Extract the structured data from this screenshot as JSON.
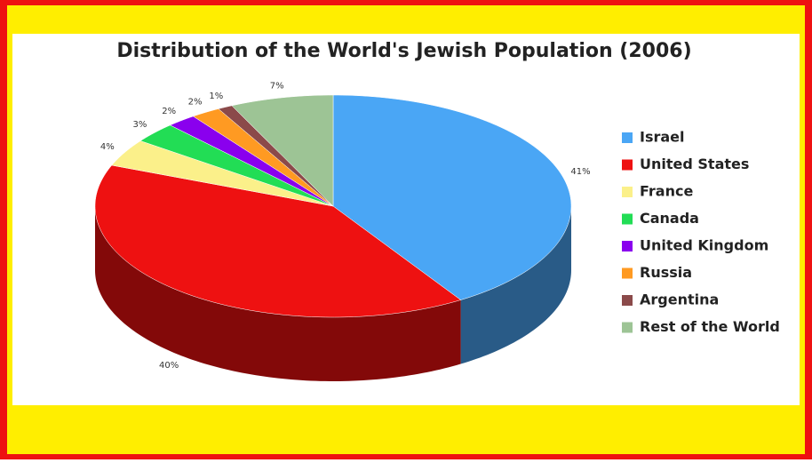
{
  "chart_data": {
    "type": "pie",
    "title": "Distribution of the World's Jewish Population (2006)",
    "categories": [
      "Israel",
      "United States",
      "France",
      "Canada",
      "United Kingdom",
      "Russia",
      "Argentina",
      "Rest of the World"
    ],
    "values": [
      41,
      40,
      4,
      3,
      2,
      2,
      1,
      7
    ],
    "value_labels": [
      "41%",
      "40%",
      "4%",
      "3%",
      "2%",
      "2%",
      "1%",
      "7%"
    ],
    "colors": [
      "#4aa6f5",
      "#ee1111",
      "#fbf08a",
      "#22dd55",
      "#8a00ee",
      "#ff9a22",
      "#8b4a4a",
      "#9dc495"
    ],
    "legend": "right"
  }
}
